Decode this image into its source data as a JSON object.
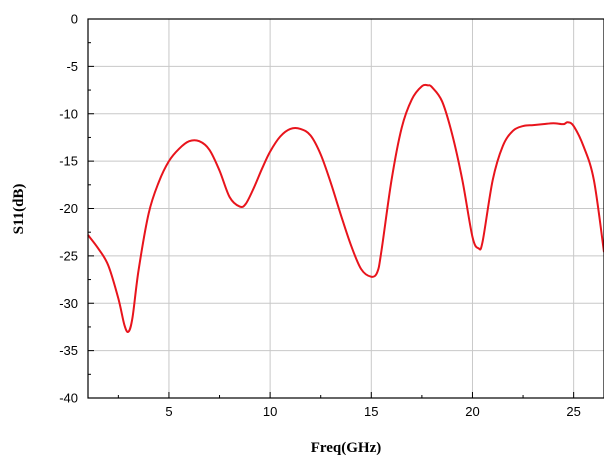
{
  "chart_data": {
    "type": "line",
    "title": "",
    "xlabel": "Freq(GHz)",
    "ylabel": "S11(dB)",
    "xlim": [
      1,
      26.5
    ],
    "ylim": [
      -40,
      0
    ],
    "x_ticks": [
      5,
      10,
      15,
      20,
      25
    ],
    "y_ticks": [
      0,
      -5,
      -10,
      -15,
      -20,
      -25,
      -30,
      -35,
      -40
    ],
    "grid": true,
    "line_color": "#e8141c",
    "grid_color": "#c8c8c8",
    "series": [
      {
        "name": "",
        "x": [
          1.0,
          1.5,
          2.0,
          2.5,
          2.8,
          3.0,
          3.2,
          3.5,
          4.0,
          4.5,
          5.0,
          5.5,
          6.0,
          6.5,
          7.0,
          7.5,
          8.0,
          8.5,
          8.8,
          9.2,
          9.6,
          10.0,
          10.5,
          11.0,
          11.5,
          12.0,
          12.5,
          13.0,
          13.5,
          14.0,
          14.5,
          15.0,
          15.3,
          15.5,
          16.0,
          16.5,
          17.0,
          17.5,
          17.8,
          18.0,
          18.5,
          19.0,
          19.5,
          20.0,
          20.3,
          20.5,
          21.0,
          21.5,
          22.0,
          22.5,
          23.0,
          23.5,
          24.0,
          24.5,
          24.7,
          25.0,
          25.5,
          26.0,
          26.5
        ],
        "y": [
          -22.8,
          -24.2,
          -26.0,
          -29.5,
          -32.3,
          -33.0,
          -31.5,
          -26.5,
          -20.5,
          -17.2,
          -15.0,
          -13.7,
          -12.9,
          -12.9,
          -13.8,
          -16.0,
          -18.8,
          -19.8,
          -19.5,
          -17.8,
          -15.8,
          -14.0,
          -12.4,
          -11.6,
          -11.6,
          -12.3,
          -14.3,
          -17.3,
          -20.7,
          -23.9,
          -26.4,
          -27.2,
          -26.7,
          -24.5,
          -17.0,
          -11.5,
          -8.5,
          -7.1,
          -7.0,
          -7.2,
          -8.7,
          -12.2,
          -17.0,
          -23.0,
          -24.2,
          -23.5,
          -17.0,
          -13.4,
          -11.8,
          -11.3,
          -11.2,
          -11.1,
          -11.0,
          -11.1,
          -10.9,
          -11.3,
          -13.5,
          -17.0,
          -24.6
        ]
      }
    ]
  }
}
